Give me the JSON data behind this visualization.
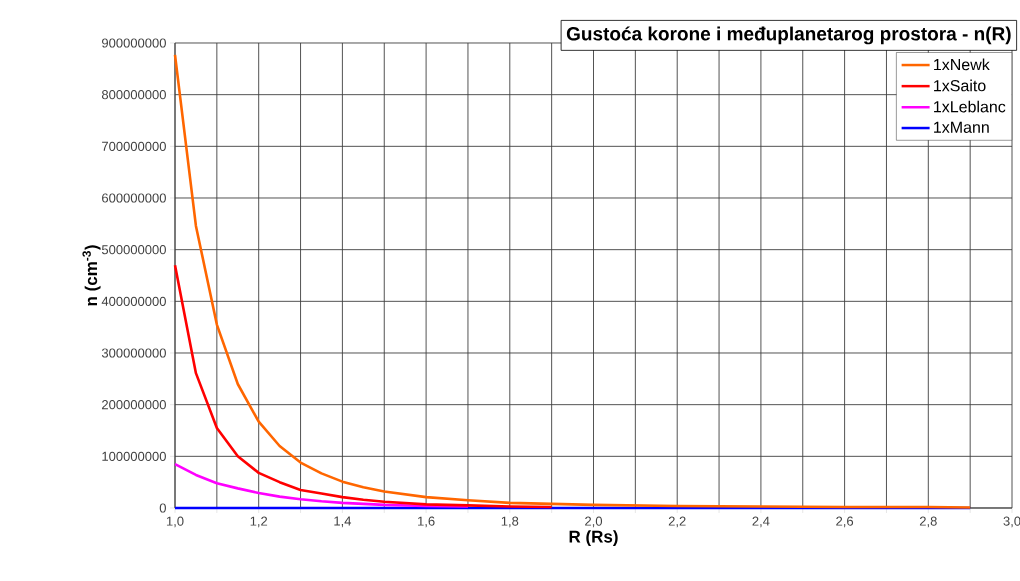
{
  "chart_data": {
    "type": "line",
    "title": "Gustoća korone i međuplanetarog prostora - n(R)",
    "xlabel": "R (Rs)",
    "ylabel": "n (cm$^{-3}$)",
    "x": [
      1.0,
      1.05,
      1.1,
      1.15,
      1.2,
      1.25,
      1.3,
      1.35,
      1.4,
      1.45,
      1.5,
      1.6,
      1.7,
      1.8,
      1.9,
      2.0,
      2.2,
      2.4,
      2.6,
      2.8,
      2.9
    ],
    "series": [
      {
        "name": "1xNewk",
        "color": "#ff6600",
        "values": [
          877000000,
          546000000,
          355000000,
          240000000,
          167000000,
          120000000,
          88000000,
          67000000,
          51000000,
          40000000,
          32000000,
          21000000,
          15000000,
          10000000,
          8000000,
          6000000,
          4000000,
          3000000,
          2000000,
          2000000,
          1000000
        ]
      },
      {
        "name": "1xSaito",
        "color": "#ff0000",
        "values": [
          470000000,
          261000000,
          155000000,
          100000000,
          68000000,
          50000000,
          35000000,
          28000000,
          21000000,
          16000000,
          12000000,
          7000000,
          5000000,
          3000000,
          2000000,
          null,
          null,
          null,
          null,
          null,
          null
        ]
      },
      {
        "name": "1xLeblanc",
        "color": "#ff00ff",
        "values": [
          85000000,
          64000000,
          48000000,
          38000000,
          29000000,
          22000000,
          17000000,
          13000000,
          10000000,
          8000000,
          6000000,
          4000000,
          3000000,
          null,
          null,
          null,
          null,
          null,
          null,
          null,
          null
        ]
      },
      {
        "name": "1xMann",
        "color": "#0000ff",
        "values": [
          0,
          0,
          0,
          0,
          0,
          0,
          0,
          0,
          0,
          0,
          0,
          0,
          0,
          0,
          0,
          0,
          0,
          0,
          0,
          0,
          0
        ]
      }
    ],
    "xlim": [
      1.0,
      3.0
    ],
    "ylim": [
      0,
      900000000
    ],
    "xticks": [
      {
        "value": 1.0,
        "label": "1,0"
      },
      {
        "value": 1.1,
        "label": null
      },
      {
        "value": 1.2,
        "label": "1,2"
      },
      {
        "value": 1.3,
        "label": null
      },
      {
        "value": 1.4,
        "label": "1,4"
      },
      {
        "value": 1.5,
        "label": null
      },
      {
        "value": 1.6,
        "label": "1,6"
      },
      {
        "value": 1.7,
        "label": null
      },
      {
        "value": 1.8,
        "label": "1,8"
      },
      {
        "value": 1.9,
        "label": null
      },
      {
        "value": 2.0,
        "label": "2,0"
      },
      {
        "value": 2.1,
        "label": null
      },
      {
        "value": 2.2,
        "label": "2,2"
      },
      {
        "value": 2.3,
        "label": null
      },
      {
        "value": 2.4,
        "label": "2,4"
      },
      {
        "value": 2.5,
        "label": null
      },
      {
        "value": 2.6,
        "label": "2,6"
      },
      {
        "value": 2.7,
        "label": null
      },
      {
        "value": 2.8,
        "label": "2,8"
      },
      {
        "value": 2.9,
        "label": null
      },
      {
        "value": 3.0,
        "label": "3,0"
      }
    ],
    "yticks": [
      0,
      100000000,
      200000000,
      300000000,
      400000000,
      500000000,
      600000000,
      700000000,
      800000000,
      900000000
    ],
    "grid": true,
    "legend": "top right"
  }
}
